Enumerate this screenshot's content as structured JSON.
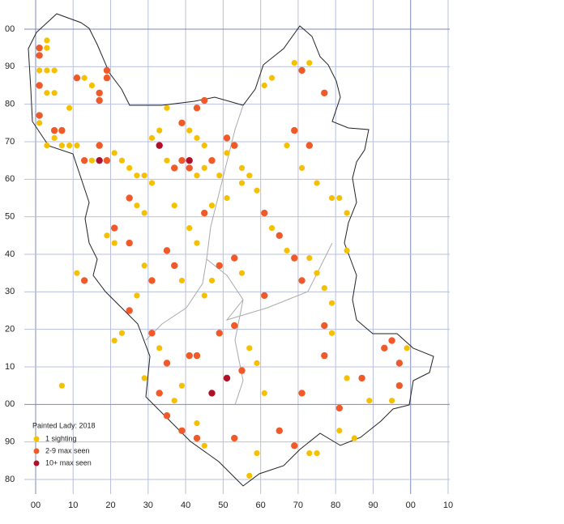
{
  "map": {
    "xticks": [
      {
        "value": 0,
        "label": "00"
      },
      10,
      20,
      30,
      40,
      50,
      60,
      70,
      80,
      90,
      {
        "value": 100,
        "label": "00"
      },
      {
        "value": 110,
        "label": "10"
      }
    ],
    "yticks": [
      {
        "value": 100,
        "label": "00"
      },
      90,
      80,
      70,
      60,
      50,
      40,
      30,
      20,
      10,
      {
        "value": 0,
        "label": "00"
      },
      {
        "value": -10,
        "label": "90"
      },
      {
        "value": -20,
        "label": "80"
      }
    ],
    "legend": {
      "title": "Painted Lady:  2018",
      "items": [
        {
          "label": "1 sighting",
          "color": "#f5c000"
        },
        {
          "label": "2-9 max seen",
          "color": "#f05a28"
        },
        {
          "label": "10+ max seen",
          "color": "#b0102a"
        }
      ]
    },
    "records": [
      [
        1,
        95,
        2
      ],
      [
        1,
        93,
        2
      ],
      [
        3,
        97,
        1
      ],
      [
        3,
        95,
        1
      ],
      [
        1,
        89,
        1
      ],
      [
        3,
        89,
        1
      ],
      [
        5,
        89,
        1
      ],
      [
        1,
        85,
        2
      ],
      [
        3,
        83,
        1
      ],
      [
        5,
        83,
        1
      ],
      [
        11,
        87,
        2
      ],
      [
        13,
        87,
        1
      ],
      [
        19,
        89,
        2
      ],
      [
        19,
        87,
        2
      ],
      [
        15,
        85,
        1
      ],
      [
        17,
        83,
        2
      ],
      [
        17,
        81,
        2
      ],
      [
        9,
        79,
        1
      ],
      [
        1,
        77,
        2
      ],
      [
        1,
        75,
        1
      ],
      [
        5,
        73,
        2
      ],
      [
        7,
        73,
        2
      ],
      [
        5,
        71,
        1
      ],
      [
        7,
        69,
        1
      ],
      [
        3,
        69,
        1
      ],
      [
        9,
        69,
        1
      ],
      [
        11,
        69,
        1
      ],
      [
        13,
        65,
        2
      ],
      [
        15,
        65,
        1
      ],
      [
        17,
        65,
        3
      ],
      [
        19,
        65,
        2
      ],
      [
        17,
        69,
        2
      ],
      [
        21,
        67,
        1
      ],
      [
        23,
        65,
        1
      ],
      [
        25,
        63,
        1
      ],
      [
        27,
        61,
        1
      ],
      [
        29,
        61,
        1
      ],
      [
        31,
        59,
        1
      ],
      [
        33,
        69,
        3
      ],
      [
        35,
        65,
        1
      ],
      [
        37,
        63,
        2
      ],
      [
        39,
        65,
        2
      ],
      [
        41,
        65,
        3
      ],
      [
        41,
        63,
        2
      ],
      [
        43,
        61,
        1
      ],
      [
        45,
        63,
        1
      ],
      [
        47,
        65,
        2
      ],
      [
        49,
        61,
        1
      ],
      [
        51,
        71,
        2
      ],
      [
        51,
        67,
        1
      ],
      [
        53,
        69,
        2
      ],
      [
        55,
        63,
        1
      ],
      [
        57,
        61,
        1
      ],
      [
        59,
        57,
        1
      ],
      [
        61,
        51,
        2
      ],
      [
        63,
        47,
        1
      ],
      [
        65,
        45,
        2
      ],
      [
        67,
        41,
        1
      ],
      [
        69,
        39,
        2
      ],
      [
        71,
        33,
        2
      ],
      [
        73,
        39,
        1
      ],
      [
        75,
        35,
        1
      ],
      [
        77,
        31,
        1
      ],
      [
        79,
        27,
        1
      ],
      [
        35,
        79,
        1
      ],
      [
        39,
        75,
        2
      ],
      [
        41,
        73,
        1
      ],
      [
        43,
        79,
        2
      ],
      [
        45,
        81,
        2
      ],
      [
        43,
        71,
        1
      ],
      [
        45,
        69,
        1
      ],
      [
        33,
        73,
        1
      ],
      [
        31,
        71,
        1
      ],
      [
        61,
        85,
        1
      ],
      [
        63,
        87,
        1
      ],
      [
        69,
        91,
        1
      ],
      [
        71,
        89,
        2
      ],
      [
        73,
        91,
        1
      ],
      [
        77,
        83,
        2
      ],
      [
        69,
        73,
        2
      ],
      [
        67,
        69,
        1
      ],
      [
        71,
        63,
        1
      ],
      [
        73,
        69,
        2
      ],
      [
        75,
        59,
        1
      ],
      [
        79,
        55,
        1
      ],
      [
        81,
        55,
        1
      ],
      [
        83,
        51,
        1
      ],
      [
        83,
        41,
        1
      ],
      [
        21,
        47,
        2
      ],
      [
        19,
        45,
        1
      ],
      [
        21,
        43,
        1
      ],
      [
        25,
        43,
        2
      ],
      [
        29,
        37,
        1
      ],
      [
        31,
        33,
        2
      ],
      [
        27,
        29,
        1
      ],
      [
        25,
        25,
        2
      ],
      [
        23,
        19,
        1
      ],
      [
        21,
        17,
        1
      ],
      [
        31,
        19,
        2
      ],
      [
        33,
        15,
        1
      ],
      [
        35,
        11,
        2
      ],
      [
        33,
        3,
        2
      ],
      [
        35,
        -3,
        2
      ],
      [
        37,
        1,
        1
      ],
      [
        39,
        5,
        1
      ],
      [
        41,
        13,
        2
      ],
      [
        43,
        13,
        2
      ],
      [
        47,
        3,
        3
      ],
      [
        51,
        7,
        3
      ],
      [
        49,
        19,
        2
      ],
      [
        53,
        21,
        2
      ],
      [
        55,
        9,
        2
      ],
      [
        57,
        15,
        1
      ],
      [
        59,
        11,
        1
      ],
      [
        61,
        3,
        1
      ],
      [
        65,
        -7,
        2
      ],
      [
        69,
        -11,
        2
      ],
      [
        71,
        3,
        2
      ],
      [
        73,
        -13,
        1
      ],
      [
        75,
        -13,
        1
      ],
      [
        77,
        13,
        2
      ],
      [
        77,
        21,
        2
      ],
      [
        79,
        19,
        1
      ],
      [
        81,
        -1,
        2
      ],
      [
        83,
        7,
        1
      ],
      [
        87,
        7,
        2
      ],
      [
        89,
        1,
        1
      ],
      [
        93,
        15,
        2
      ],
      [
        95,
        17,
        2
      ],
      [
        97,
        11,
        2
      ],
      [
        97,
        5,
        2
      ],
      [
        99,
        15,
        1
      ],
      [
        95,
        1,
        1
      ],
      [
        7,
        5,
        1
      ],
      [
        11,
        35,
        1
      ],
      [
        13,
        33,
        2
      ],
      [
        29,
        7,
        1
      ],
      [
        39,
        -7,
        2
      ],
      [
        43,
        -9,
        2
      ],
      [
        45,
        -11,
        1
      ],
      [
        53,
        -9,
        2
      ],
      [
        57,
        -19,
        1
      ],
      [
        59,
        -13,
        1
      ],
      [
        43,
        -5,
        1
      ],
      [
        81,
        -7,
        1
      ],
      [
        85,
        -9,
        1
      ],
      [
        61,
        29,
        2
      ],
      [
        55,
        35,
        1
      ],
      [
        53,
        39,
        2
      ],
      [
        49,
        37,
        2
      ],
      [
        47,
        33,
        1
      ],
      [
        45,
        29,
        1
      ],
      [
        39,
        33,
        1
      ],
      [
        35,
        41,
        2
      ],
      [
        37,
        37,
        2
      ],
      [
        43,
        43,
        1
      ],
      [
        41,
        47,
        1
      ],
      [
        45,
        51,
        2
      ],
      [
        47,
        53,
        1
      ],
      [
        51,
        55,
        1
      ],
      [
        55,
        59,
        1
      ],
      [
        25,
        55,
        2
      ],
      [
        27,
        53,
        1
      ],
      [
        29,
        51,
        1
      ],
      [
        37,
        53,
        1
      ]
    ]
  }
}
